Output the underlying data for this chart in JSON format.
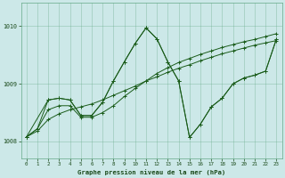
{
  "xlabel": "Graphe pression niveau de la mer (hPa)",
  "xlim": [
    -0.5,
    23.5
  ],
  "ylim": [
    1007.7,
    1010.4
  ],
  "yticks": [
    1008,
    1009,
    1010
  ],
  "xticks": [
    0,
    1,
    2,
    3,
    4,
    5,
    6,
    7,
    8,
    9,
    10,
    11,
    12,
    13,
    14,
    15,
    16,
    17,
    18,
    19,
    20,
    21,
    22,
    23
  ],
  "bg_color": "#cce8e8",
  "grid_color": "#66aa88",
  "line_color": "#1a5c1a",
  "s1x": [
    0,
    1,
    2,
    3,
    4,
    5,
    6,
    7,
    8,
    9,
    10,
    11,
    12,
    13,
    14,
    15,
    16,
    17,
    18,
    19,
    20,
    21,
    22,
    23
  ],
  "s1y": [
    1008.08,
    1008.22,
    1008.55,
    1008.62,
    1008.62,
    1008.42,
    1008.42,
    1008.5,
    1008.62,
    1008.78,
    1008.92,
    1009.05,
    1009.18,
    1009.28,
    1009.37,
    1009.44,
    1009.51,
    1009.57,
    1009.63,
    1009.68,
    1009.73,
    1009.77,
    1009.82,
    1009.87
  ],
  "s2x": [
    0,
    1,
    2,
    3,
    4,
    5,
    6,
    7,
    8,
    9,
    10,
    11,
    12,
    13,
    14,
    15,
    16,
    17,
    18,
    19,
    20,
    21,
    22,
    23
  ],
  "s2y": [
    1008.08,
    1008.18,
    1008.38,
    1008.48,
    1008.55,
    1008.6,
    1008.65,
    1008.72,
    1008.8,
    1008.88,
    1008.96,
    1009.05,
    1009.12,
    1009.2,
    1009.27,
    1009.33,
    1009.4,
    1009.46,
    1009.52,
    1009.57,
    1009.62,
    1009.67,
    1009.71,
    1009.75
  ],
  "s3x": [
    0,
    2,
    3,
    4,
    5,
    6,
    7,
    8,
    9,
    10,
    11,
    12,
    13,
    14,
    15,
    16,
    17,
    18,
    19,
    20,
    21,
    22,
    23
  ],
  "s3y": [
    1008.08,
    1008.72,
    1008.75,
    1008.72,
    1008.45,
    1008.45,
    1008.68,
    1009.05,
    1009.38,
    1009.7,
    1009.97,
    1009.78,
    1009.38,
    1009.05,
    1008.07,
    1008.3,
    1008.6,
    1008.75,
    1009.0,
    1009.1,
    1009.15,
    1009.22,
    1009.78
  ],
  "s4x": [
    0,
    1,
    2,
    3,
    4,
    5,
    6,
    7,
    8,
    9,
    10,
    11,
    12,
    13,
    14,
    15,
    16,
    17,
    18,
    19,
    20,
    21,
    22,
    23
  ],
  "s4y": [
    1008.08,
    1008.22,
    1008.72,
    1008.75,
    1008.72,
    1008.45,
    1008.45,
    1008.68,
    1009.05,
    1009.38,
    1009.7,
    1009.97,
    1009.78,
    1009.38,
    1009.05,
    1008.07,
    1008.3,
    1008.6,
    1008.75,
    1009.0,
    1009.1,
    1009.15,
    1009.22,
    1009.78
  ]
}
